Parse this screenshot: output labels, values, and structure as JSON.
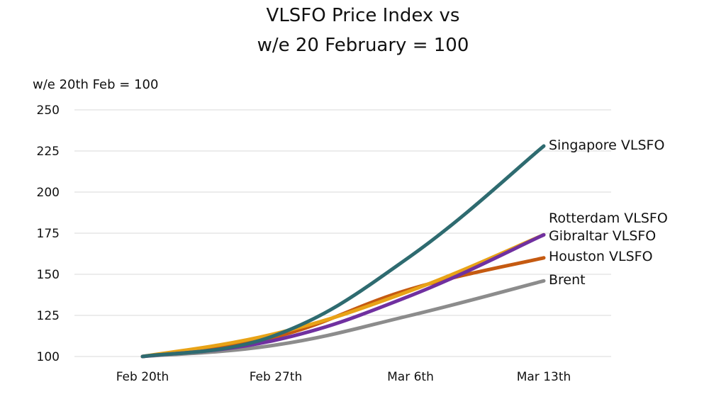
{
  "chart_data": {
    "type": "line",
    "title_lines": [
      "VLSFO Price Index vs",
      "w/e 20 February = 100"
    ],
    "ylabel": "w/e 20th Feb = 100",
    "xlabel": "",
    "categories": [
      "Feb 20th",
      "Feb 27th",
      "Mar 6th",
      "Mar 13th"
    ],
    "y_ticks": [
      "100",
      "125",
      "150",
      "175",
      "200",
      "225",
      "250"
    ],
    "ylim": [
      100,
      250
    ],
    "grid": true,
    "legend": "direct labels at line ends",
    "series": [
      {
        "name": "Brent",
        "color": "#8c8c8c",
        "values": [
          100,
          107,
          125,
          146
        ]
      },
      {
        "name": "Houston VLSFO",
        "color": "#c55a11",
        "values": [
          100,
          112,
          141,
          160
        ]
      },
      {
        "name": "Rotterdam VLSFO",
        "color": "#e8a317",
        "values": [
          100,
          114,
          140,
          174
        ]
      },
      {
        "name": "Gibraltar VLSFO",
        "color": "#7030a0",
        "values": [
          100,
          110,
          137,
          174
        ]
      },
      {
        "name": "Singapore VLSFO",
        "color": "#2e6b70",
        "values": [
          100,
          113,
          161,
          228
        ]
      }
    ]
  }
}
